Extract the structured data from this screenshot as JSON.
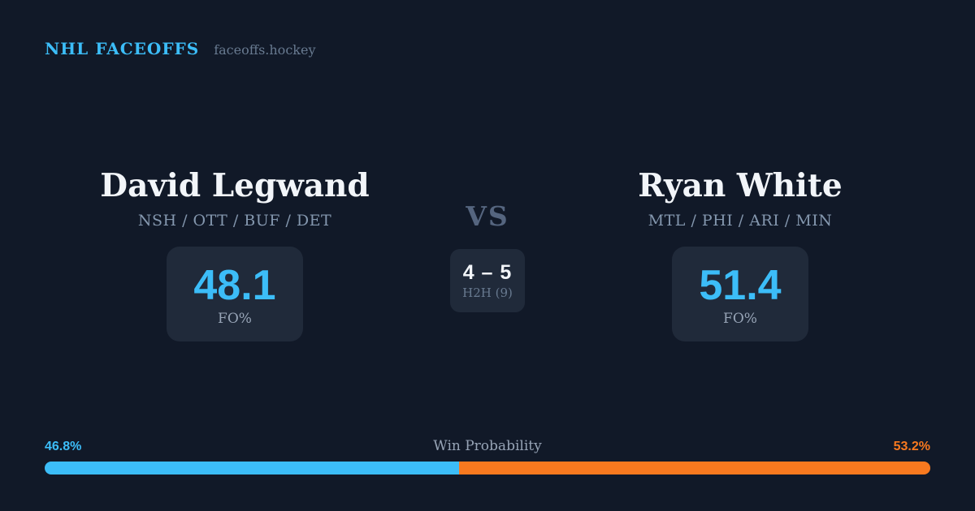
{
  "colors": {
    "background": "#111928",
    "card": "#202a3a",
    "accent_blue": "#3cbdf8",
    "accent_orange": "#f8791f",
    "name_text": "#f2f5f9",
    "muted_text": "#97a4b6"
  },
  "header": {
    "brand": "NHL FACEOFFS",
    "site": "faceoffs.hockey"
  },
  "matchup": {
    "player_left": {
      "name": "David Legwand",
      "teams": "NSH / OTT / BUF / DET",
      "stat_value": "48.1",
      "stat_label": "FO%"
    },
    "vs_label": "VS",
    "h2h": {
      "score": "4 – 5",
      "label": "H2H (9)"
    },
    "player_right": {
      "name": "Ryan White",
      "teams": "MTL / PHI / ARI / MIN",
      "stat_value": "51.4",
      "stat_label": "FO%"
    }
  },
  "win_probability": {
    "label": "Win Probability",
    "left_pct": "46.8%",
    "right_pct": "53.2%",
    "left_value": 46.8,
    "right_value": 53.2
  }
}
